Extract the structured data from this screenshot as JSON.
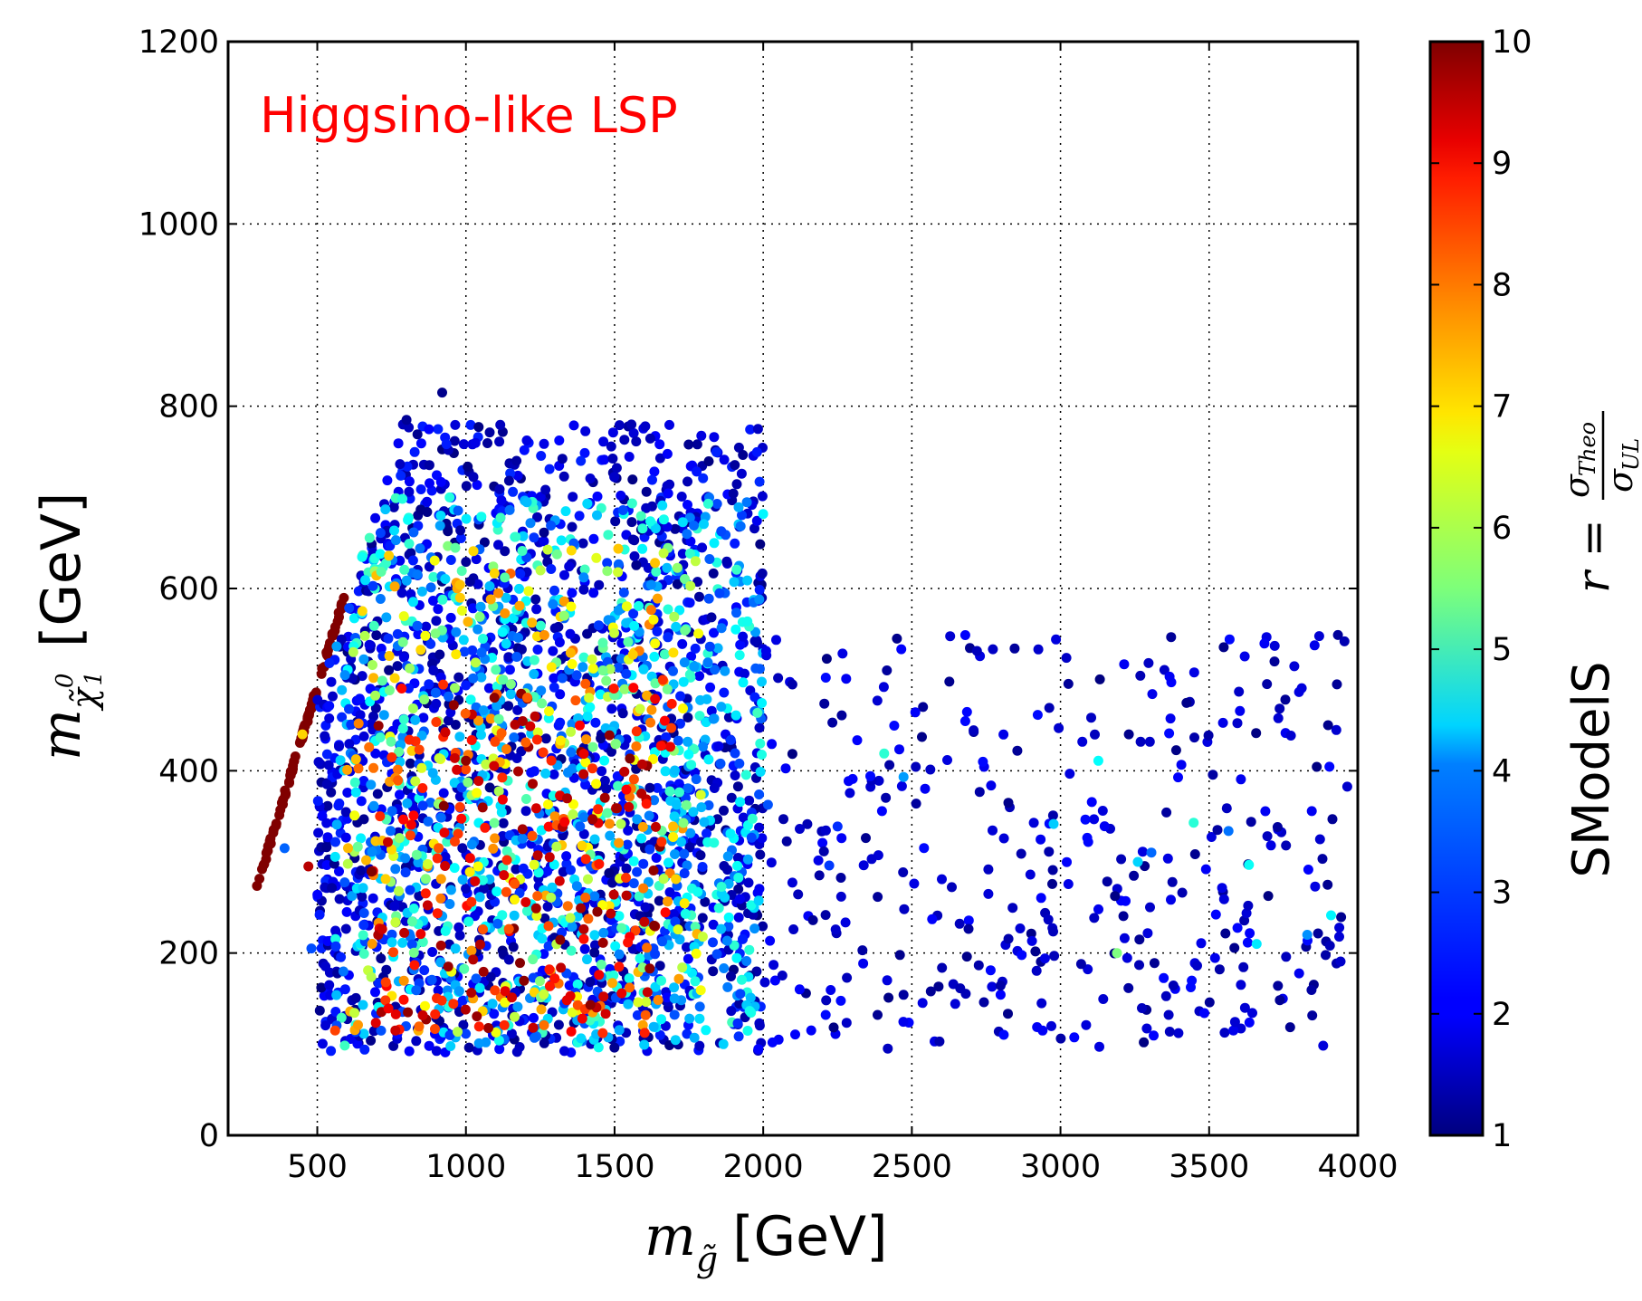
{
  "chart_data": {
    "type": "scatter",
    "annotation": {
      "text": "Higgsino-like LSP",
      "color": "#ff0000"
    },
    "xaxis": {
      "label_math": "m",
      "label_sub": "g̃",
      "label_unit": "[GeV]",
      "range": [
        200,
        4000
      ],
      "ticks": [
        500,
        1000,
        1500,
        2000,
        2500,
        3000,
        3500,
        4000
      ],
      "tick_labels": [
        "500",
        "1000",
        "1500",
        "2000",
        "2500",
        "3000",
        "3500",
        "4000"
      ]
    },
    "yaxis": {
      "label_math": "m",
      "label_sub": "χ̃",
      "label_sub_sup": "0",
      "label_sub_sub": "1",
      "label_unit": "[GeV]",
      "range": [
        0,
        1200
      ],
      "ticks": [
        0,
        200,
        400,
        600,
        800,
        1000,
        1200
      ],
      "tick_labels": [
        "0",
        "200",
        "400",
        "600",
        "800",
        "1000",
        "1200"
      ]
    },
    "grid": true,
    "grid_style": "dotted",
    "colorbar": {
      "label_text": "SModelS",
      "label_math": "r =",
      "frac_num": "σ",
      "frac_num_sub": "Theo",
      "frac_den": "σ",
      "frac_den_sub": "UL",
      "range": [
        1,
        10
      ],
      "ticks": [
        1,
        2,
        3,
        4,
        5,
        6,
        7,
        8,
        9,
        10
      ],
      "tick_labels": [
        "1",
        "2",
        "3",
        "4",
        "5",
        "6",
        "7",
        "8",
        "9",
        "10"
      ],
      "colormap": "jet"
    },
    "point_groups": [
      {
        "name": "diagonal-edge",
        "r": 10,
        "x_range": [
          290,
          590
        ],
        "y_range": [
          265,
          590
        ],
        "count": 90,
        "correlated": true
      },
      {
        "name": "core-low-r",
        "r_range": [
          1,
          2.5
        ],
        "x_range": [
          500,
          2000
        ],
        "y_range": [
          90,
          780
        ],
        "count": 1500
      },
      {
        "name": "core-mid-r",
        "r_range": [
          2.5,
          5
        ],
        "x_range": [
          560,
          2000
        ],
        "y_range": [
          95,
          700
        ],
        "count": 900
      },
      {
        "name": "core-high-r",
        "r_range": [
          5,
          8
        ],
        "x_range": [
          600,
          1800
        ],
        "y_range": [
          110,
          650
        ],
        "count": 320
      },
      {
        "name": "core-very-high-r",
        "r_range": [
          8,
          10
        ],
        "x_range": [
          680,
          1700
        ],
        "y_range": [
          110,
          500
        ],
        "count": 220
      },
      {
        "name": "tail-low-r",
        "r_range": [
          1,
          2.2
        ],
        "x_range": [
          2000,
          4000
        ],
        "y_range": [
          95,
          550
        ],
        "count": 380
      },
      {
        "name": "tail-mid-r",
        "r_range": [
          2.2,
          5
        ],
        "x_range": [
          2000,
          4000
        ],
        "y_range": [
          180,
          420
        ],
        "count": 12
      }
    ],
    "points": [
      {
        "x": 920,
        "y": 815,
        "r": 1.1
      },
      {
        "x": 800,
        "y": 785,
        "r": 1.2
      },
      {
        "x": 2450,
        "y": 545,
        "r": 1.1
      },
      {
        "x": 3900,
        "y": 450,
        "r": 1.1
      },
      {
        "x": 3230,
        "y": 440,
        "r": 1.1
      },
      {
        "x": 3190,
        "y": 200,
        "r": 5.5
      },
      {
        "x": 3660,
        "y": 210,
        "r": 4.2
      },
      {
        "x": 3260,
        "y": 300,
        "r": 4.0
      },
      {
        "x": 3830,
        "y": 220,
        "r": 3.4
      },
      {
        "x": 390,
        "y": 315,
        "r": 3.0
      },
      {
        "x": 480,
        "y": 205,
        "r": 2.8
      },
      {
        "x": 470,
        "y": 295,
        "r": 9.5
      },
      {
        "x": 560,
        "y": 115,
        "r": 8.3
      },
      {
        "x": 450,
        "y": 440,
        "r": 7.0
      }
    ]
  }
}
